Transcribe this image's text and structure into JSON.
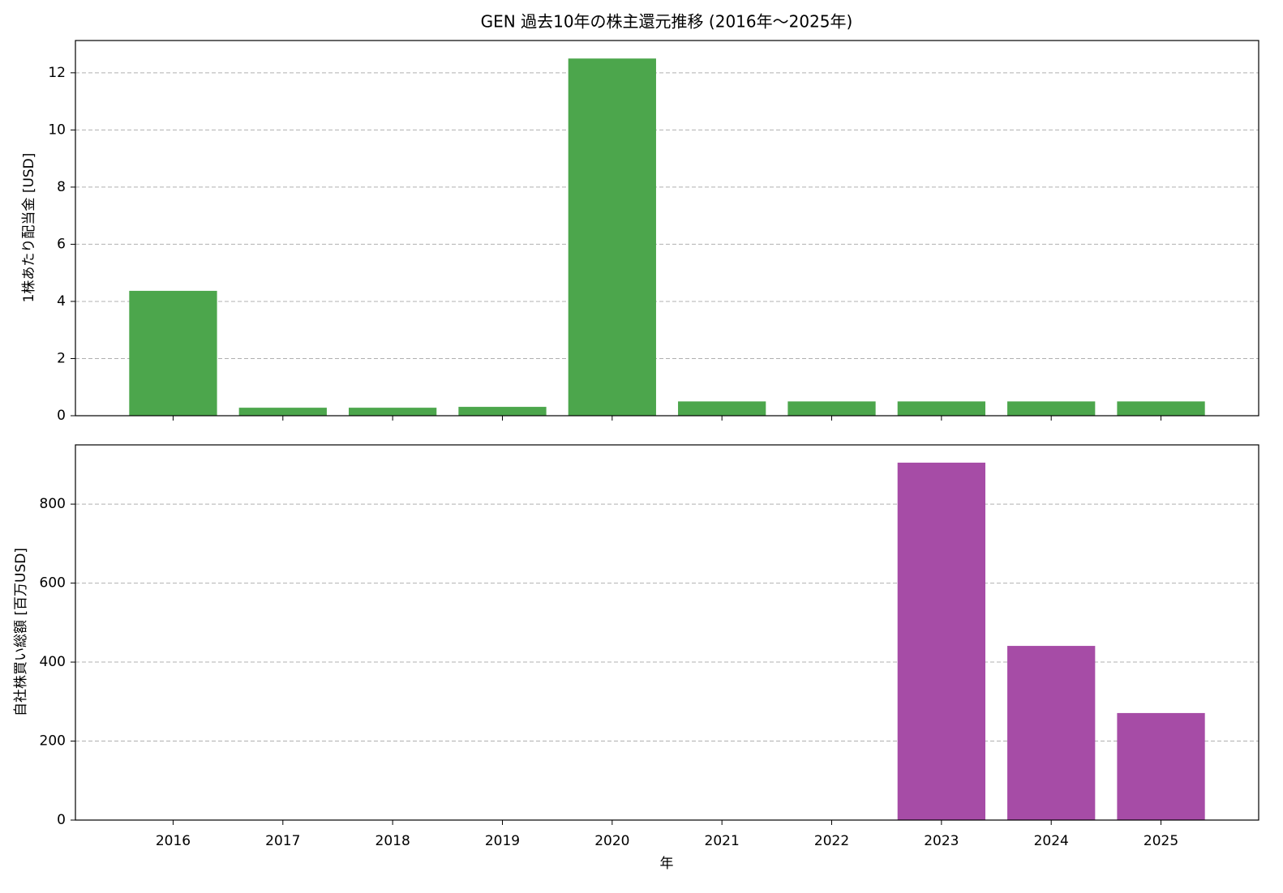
{
  "chart_data": [
    {
      "type": "bar",
      "title": "GEN 過去10年の株主還元推移 (2016年～2025年)",
      "y_label": "1株あたり配当金 [USD]",
      "values": [
        4.37,
        0.28,
        0.28,
        0.31,
        12.5,
        0.5,
        0.5,
        0.5,
        0.5,
        0.5
      ],
      "color": "#4ca64c",
      "ylim": [
        0,
        13.13
      ],
      "yticks": [
        0,
        2,
        4,
        6,
        8,
        10,
        12
      ],
      "grid": true
    },
    {
      "type": "bar",
      "x_label": "年",
      "y_label": "自社株買い総額 [百万USD]",
      "categories": [
        "2016",
        "2017",
        "2018",
        "2019",
        "2020",
        "2021",
        "2022",
        "2023",
        "2024",
        "2025"
      ],
      "values": [
        0,
        0,
        0,
        0,
        0,
        0,
        0,
        905,
        441,
        271
      ],
      "color": "#a64ca6",
      "ylim": [
        0,
        950
      ],
      "yticks": [
        0,
        200,
        400,
        600,
        800
      ],
      "grid": true
    }
  ]
}
